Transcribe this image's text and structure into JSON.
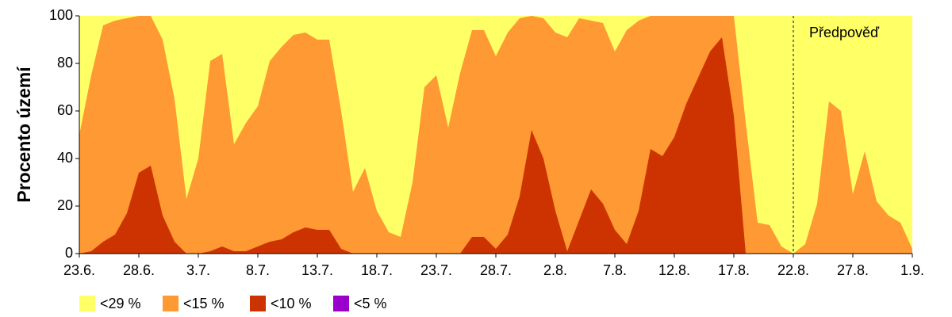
{
  "chart_data": {
    "type": "area",
    "ylabel": "Procento území",
    "categories": [
      "23.6.",
      null,
      null,
      null,
      null,
      "28.6.",
      null,
      null,
      null,
      null,
      "3.7.",
      null,
      null,
      null,
      null,
      "8.7.",
      null,
      null,
      null,
      null,
      "13.7.",
      null,
      null,
      null,
      null,
      "18.7.",
      null,
      null,
      null,
      null,
      "23.7.",
      null,
      null,
      null,
      null,
      "28.7.",
      null,
      null,
      null,
      null,
      "2.8.",
      null,
      null,
      null,
      null,
      "7.8.",
      null,
      null,
      null,
      null,
      "12.8.",
      null,
      null,
      null,
      null,
      "17.8.",
      null,
      null,
      null,
      null,
      "22.8.",
      null,
      null,
      null,
      null,
      "27.8.",
      null,
      null,
      null,
      null,
      "1.9."
    ],
    "series": [
      {
        "name": "<29 %",
        "color": "#ffff66",
        "values": [
          100,
          100,
          100,
          100,
          100,
          100,
          100,
          100,
          100,
          100,
          100,
          100,
          100,
          100,
          100,
          100,
          100,
          100,
          100,
          100,
          100,
          100,
          100,
          100,
          100,
          100,
          100,
          100,
          100,
          100,
          100,
          100,
          100,
          100,
          100,
          100,
          100,
          100,
          100,
          100,
          100,
          100,
          100,
          100,
          100,
          100,
          100,
          100,
          100,
          100,
          100,
          100,
          100,
          100,
          100,
          100,
          100,
          100,
          100,
          100,
          100,
          100,
          100,
          100,
          100,
          100,
          100,
          100,
          100,
          100,
          100
        ]
      },
      {
        "name": "<15 %",
        "color": "#ff9933",
        "values": [
          50,
          75,
          96,
          98,
          99,
          100,
          100,
          90,
          65,
          23,
          40,
          81,
          84,
          46,
          55,
          62,
          81,
          87,
          92,
          93,
          90,
          90,
          60,
          26,
          36,
          18,
          9,
          7,
          30,
          70,
          75,
          53,
          76,
          94,
          94,
          83,
          93,
          99,
          100,
          99,
          93,
          91,
          99,
          98,
          97,
          85,
          94,
          98,
          100,
          100,
          100,
          100,
          100,
          100,
          100,
          100,
          55,
          13,
          12,
          3,
          0,
          4,
          21,
          64,
          60,
          25,
          43,
          22,
          16,
          13,
          2
        ]
      },
      {
        "name": "<10 %",
        "color": "#cc3300",
        "values": [
          0,
          1,
          5,
          8,
          17,
          34,
          37,
          16,
          5,
          0,
          0,
          1,
          3,
          1,
          1,
          3,
          5,
          6,
          9,
          11,
          10,
          10,
          2,
          0,
          0,
          0,
          0,
          0,
          0,
          0,
          0,
          0,
          0,
          7,
          7,
          2,
          8,
          24,
          52,
          40,
          18,
          1,
          14,
          27,
          21,
          10,
          4,
          18,
          44,
          41,
          49,
          63,
          74,
          85,
          91,
          58,
          0,
          0,
          0,
          0,
          0,
          0,
          0,
          0,
          0,
          0,
          0,
          0,
          0,
          0,
          0
        ]
      },
      {
        "name": "<5 %",
        "color": "#9900cc",
        "values": [
          0,
          0,
          0,
          0,
          0,
          0,
          0,
          0,
          0,
          0,
          0,
          0,
          0,
          0,
          0,
          0,
          0,
          0,
          0,
          0,
          0,
          0,
          0,
          0,
          0,
          0,
          0,
          0,
          0,
          0,
          0,
          0,
          0,
          0,
          0,
          0,
          0,
          0,
          0,
          0,
          0,
          0,
          0,
          0,
          0,
          0,
          0,
          0,
          0,
          0,
          0,
          0,
          0,
          0,
          0,
          0,
          0,
          0,
          0,
          0,
          0,
          0,
          0,
          0,
          0,
          0,
          0,
          0,
          0,
          0,
          0
        ]
      }
    ],
    "ylim": [
      0,
      100
    ],
    "yticks": [
      0,
      20,
      40,
      60,
      80,
      100
    ],
    "forecast": {
      "label": "Předpověď",
      "category": "22.8."
    }
  }
}
